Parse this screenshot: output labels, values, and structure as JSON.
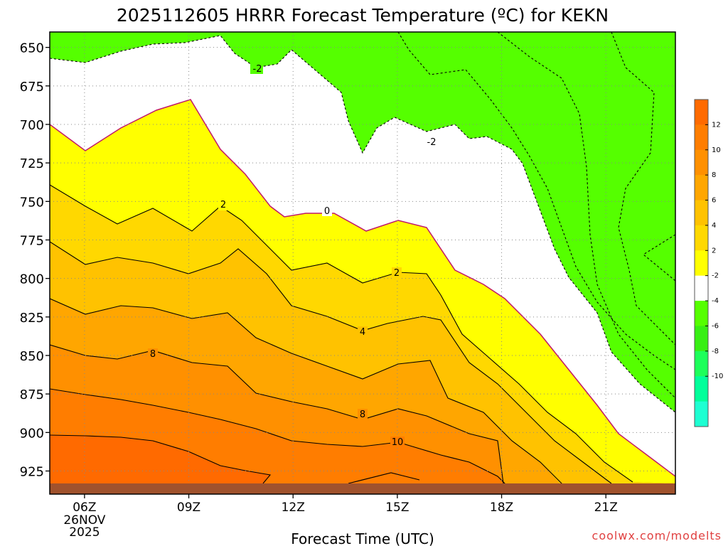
{
  "chart_data": {
    "type": "contour",
    "title": "2025112605 HRRR Forecast Temperature (ºC) for KEKN",
    "xlabel": "Forecast Time (UTC)",
    "ylabel": "",
    "credit": "coolwx.com/modelts",
    "x_hours_utc": [
      5,
      23
    ],
    "x_ticks": [
      {
        "hour": 6,
        "label": "06Z",
        "sub1": "26NOV",
        "sub2": "2025"
      },
      {
        "hour": 9,
        "label": "09Z"
      },
      {
        "hour": 12,
        "label": "12Z"
      },
      {
        "hour": 15,
        "label": "15Z"
      },
      {
        "hour": 18,
        "label": "18Z"
      },
      {
        "hour": 21,
        "label": "21Z"
      }
    ],
    "y_pressure_range_hpa": [
      940,
      640
    ],
    "y_ticks": [
      "650",
      "675",
      "700",
      "725",
      "750",
      "775",
      "800",
      "825",
      "850",
      "875",
      "900",
      "925"
    ],
    "y_tick_values": [
      650,
      675,
      700,
      725,
      750,
      775,
      800,
      825,
      850,
      875,
      900,
      925
    ],
    "grid": true,
    "colorbar": {
      "ticks": [
        "12",
        "10",
        "8",
        "6",
        "4",
        "2",
        "-2",
        "-4",
        "-6",
        "-8",
        "-10"
      ],
      "bands": [
        {
          "range": "12 to 14",
          "color": "#ff6a00"
        },
        {
          "range": "10 to 12",
          "color": "#ff7d00"
        },
        {
          "range": "8 to 10",
          "color": "#ff9000"
        },
        {
          "range": "6 to 8",
          "color": "#ffa600"
        },
        {
          "range": "4 to 6",
          "color": "#ffc200"
        },
        {
          "range": "2 to 4",
          "color": "#ffd800"
        },
        {
          "range": "0 to 2",
          "color": "#ffff00"
        },
        {
          "range": "-2 to 0",
          "color": "#ffffff"
        },
        {
          "range": "-4 to -2",
          "color": "#55ff00"
        },
        {
          "range": "-6 to -4",
          "color": "#38ef14"
        },
        {
          "range": "-8 to -6",
          "color": "#1cff5a"
        },
        {
          "range": "-10 to -8",
          "color": "#00ff9a"
        },
        {
          "range": "-12 to -10",
          "color": "#1dffd2"
        }
      ]
    },
    "contour_labels": [
      "-2",
      "-2",
      "0",
      "2",
      "2",
      "4",
      "8",
      "8",
      "10"
    ],
    "zero_isotherm_color": "#c0186a",
    "ground_color": "#a0522d"
  }
}
